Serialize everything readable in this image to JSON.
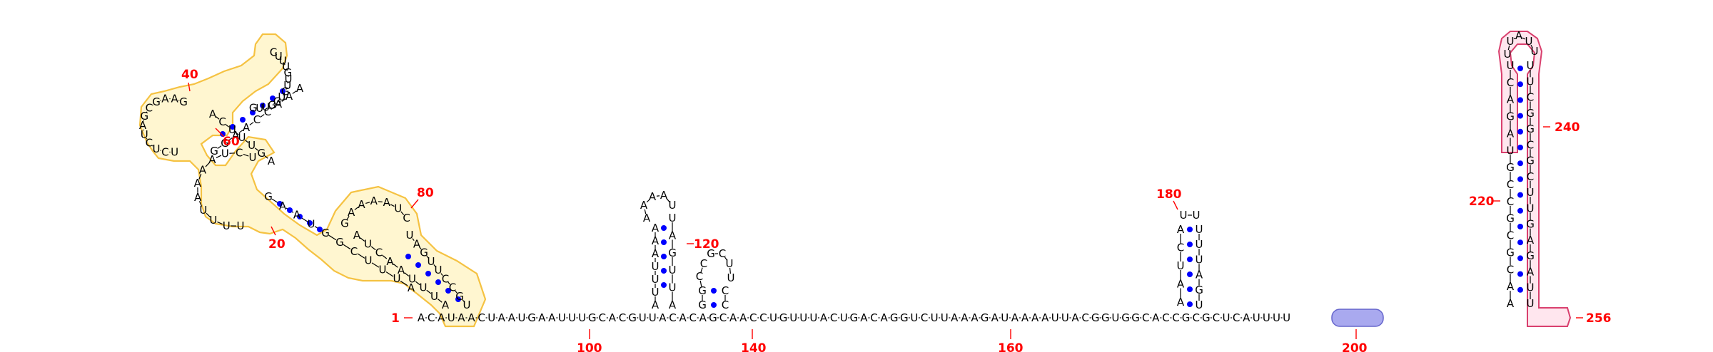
{
  "sequence": "ACAUAACUAAUGAAUUUGCACGUUACACAGCAACCUGUUUACUGACAGGUCUUAAAGAUAAAAUUACGGUGGCACCGCGCUCAUUUU",
  "highlights": {
    "yellow_region": {
      "stroke": "#f5c242",
      "fill": "#fff6d0"
    },
    "pink_region": {
      "stroke": "#d9406e",
      "fill": "#ffe6ee"
    },
    "blue_region": {
      "fill": "#a9a9ef",
      "stroke": "#6666cc"
    }
  },
  "pair_dot_color": "#0000ff",
  "number_color": "#ff0000",
  "labels": {
    "n1": "1",
    "n20": "20",
    "n40": "40",
    "n60": "60",
    "n80": "80",
    "n100": "100",
    "n120": "120",
    "n140": "140",
    "n160": "160",
    "n180": "180",
    "n200": "200",
    "n220": "220",
    "n240": "240",
    "n256": "256"
  },
  "yellow_domain": {
    "arm1_left": [
      "A",
      "U",
      "U",
      "U",
      "A",
      "A",
      "C",
      "U",
      "A"
    ],
    "arm1_right": [
      "U",
      "G",
      "C",
      "C",
      "U",
      "U",
      "G",
      "A",
      "U"
    ],
    "bulge1": [
      "G",
      "A",
      "A",
      "A",
      "A",
      "U",
      "C"
    ],
    "hairpin_outer": [
      "G",
      "A",
      "A",
      "U",
      "G",
      "G",
      "C",
      "U",
      "U",
      "U",
      "A"
    ],
    "loop2": [
      "U",
      "U",
      "U",
      "U",
      "A",
      "A",
      "A",
      "A",
      "U",
      "C",
      "U"
    ],
    "loop3": [
      "A",
      "C",
      "U",
      "U",
      "U",
      "G",
      "A"
    ],
    "top_stem": [
      "G",
      "U",
      "U",
      "G",
      "G",
      "U",
      "G",
      "U",
      "U",
      "G",
      "U",
      "U",
      "U",
      "C"
    ],
    "top_stem2": [
      "A",
      "A",
      "A",
      "C",
      "C",
      "A",
      "A",
      "G",
      "G"
    ],
    "left_loop": [
      "G",
      "A",
      "A",
      "G",
      "C",
      "G",
      "A",
      "U",
      "C",
      "U",
      "C",
      "U"
    ]
  },
  "hairpin_a": {
    "left": [
      "A",
      "U",
      "U",
      "U",
      "A",
      "A",
      "A"
    ],
    "loop": [
      "A",
      "A",
      "A",
      "A",
      "U"
    ],
    "right": [
      "U",
      "A",
      "G",
      "U",
      "U",
      "A"
    ]
  },
  "hairpin_b": {
    "left": [
      "G",
      "G",
      "C",
      "C"
    ],
    "loop": [
      "G",
      "C",
      "U",
      "U"
    ],
    "right": [
      "C",
      "C"
    ]
  },
  "hairpin_c": {
    "left": [
      "A",
      "A",
      "U",
      "C",
      "A"
    ],
    "loop": [
      "U",
      "U"
    ],
    "right": [
      "U",
      "U",
      "U",
      "A",
      "G",
      "U"
    ]
  },
  "hairpin_d": {
    "left": [
      "A",
      "A",
      "C",
      "G",
      "C",
      "G",
      "C",
      "C",
      "G",
      "U",
      "A",
      "G",
      "A",
      "C",
      "U"
    ],
    "loop": [
      "U",
      "U",
      "A",
      "U",
      "U"
    ],
    "right": [
      "U",
      "U",
      "C",
      "G",
      "G",
      "C",
      "G",
      "C",
      "U",
      "U",
      "G",
      "A",
      "G",
      "A",
      "U",
      "U"
    ]
  }
}
